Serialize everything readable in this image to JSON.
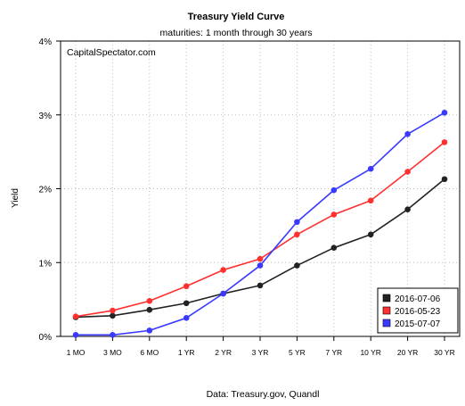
{
  "chart_data": {
    "type": "line",
    "title": "Treasury Yield Curve",
    "subtitle": "maturities: 1 month through 30 years",
    "watermark": "CapitalSpectator.com",
    "xlabel": "",
    "ylabel": "Yield",
    "source_note": "Data: Treasury.gov, Quandl",
    "categories": [
      "1 MO",
      "3 MO",
      "6 MO",
      "1 YR",
      "2 YR",
      "3 YR",
      "5 YR",
      "7 YR",
      "10 YR",
      "20 YR",
      "30 YR"
    ],
    "ylim": [
      0,
      4
    ],
    "yticks": [
      0,
      1,
      2,
      3,
      4
    ],
    "ytick_labels": [
      "0%",
      "1%",
      "2%",
      "3%",
      "4%"
    ],
    "grid": true,
    "legend_position": "bottom-right",
    "series": [
      {
        "name": "2016-07-06",
        "color": "#222222",
        "values": [
          0.26,
          0.28,
          0.36,
          0.45,
          0.58,
          0.69,
          0.96,
          1.2,
          1.38,
          1.72,
          2.13
        ]
      },
      {
        "name": "2016-05-23",
        "color": "#ff3030",
        "values": [
          0.27,
          0.35,
          0.48,
          0.68,
          0.9,
          1.05,
          1.38,
          1.65,
          1.84,
          2.23,
          2.63
        ]
      },
      {
        "name": "2015-07-07",
        "color": "#3a3aff",
        "values": [
          0.02,
          0.02,
          0.08,
          0.25,
          0.58,
          0.96,
          1.55,
          1.98,
          2.27,
          2.74,
          3.03
        ]
      }
    ]
  }
}
